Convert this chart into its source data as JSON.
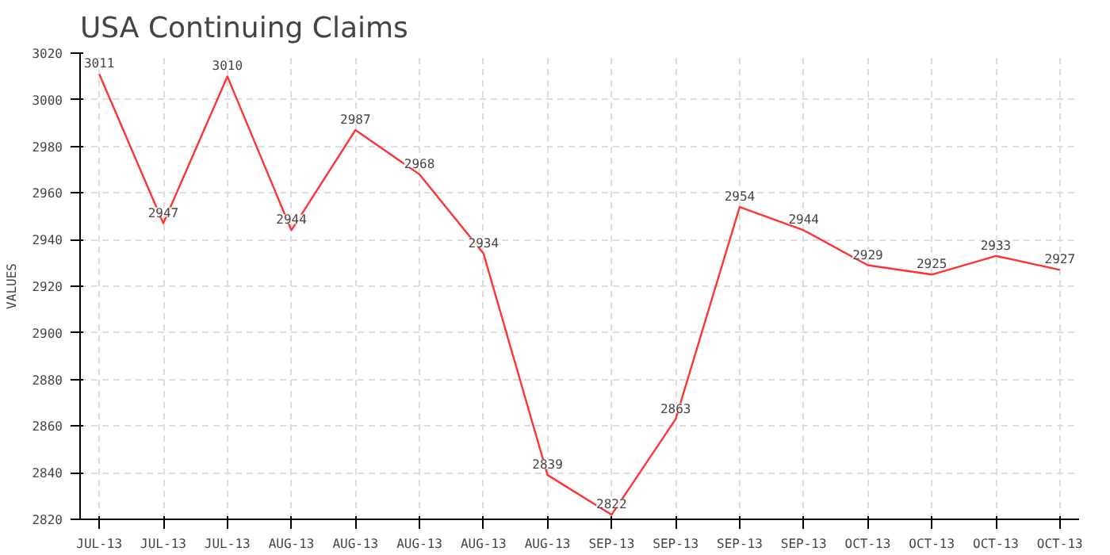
{
  "chart_data": {
    "type": "line",
    "title": "USA Continuing Claims",
    "ylabel": "VALUES",
    "categories": [
      "JUL-13",
      "JUL-13",
      "JUL-13",
      "AUG-13",
      "AUG-13",
      "AUG-13",
      "AUG-13",
      "AUG-13",
      "SEP-13",
      "SEP-13",
      "SEP-13",
      "SEP-13",
      "OCT-13",
      "OCT-13",
      "OCT-13",
      "OCT-13"
    ],
    "series": [
      {
        "color": "#ff3333",
        "values": [
          3011,
          2947,
          3010,
          2944,
          2987,
          2968,
          2934,
          2839,
          2822,
          2863,
          2954,
          2944,
          2929,
          2925,
          2933,
          2927
        ]
      }
    ],
    "ylim": [
      2820,
      3020
    ],
    "yticks": [
      2820,
      2840,
      2860,
      2880,
      2900,
      2920,
      2940,
      2960,
      2980,
      3000,
      3020
    ],
    "grid": true,
    "data_labels": true,
    "marker": "none",
    "line_style": "solid"
  }
}
